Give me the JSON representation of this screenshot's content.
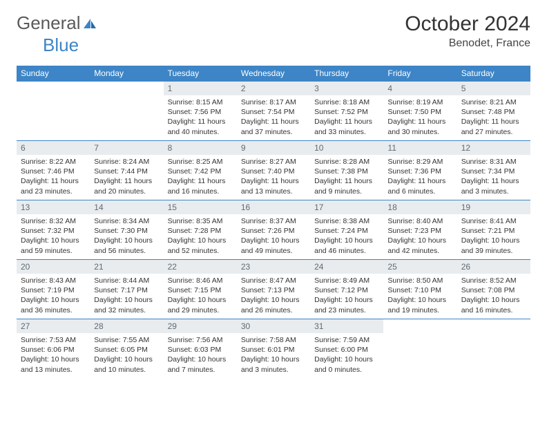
{
  "header": {
    "logo_part1": "General",
    "logo_part2": "Blue",
    "month_title": "October 2024",
    "location": "Benodet, France"
  },
  "colors": {
    "header_bg": "#3d85c6",
    "header_text": "#ffffff",
    "daynum_bg": "#e8ecef",
    "daynum_text": "#5f6a72",
    "border": "#3d85c6",
    "body_text": "#333333",
    "logo_gray": "#5a5a5a",
    "logo_blue": "#3d85c6"
  },
  "typography": {
    "month_title_fontsize": 30,
    "location_fontsize": 16,
    "dayheader_fontsize": 12,
    "daynum_fontsize": 12,
    "daytext_fontsize": 10.5,
    "logo_fontsize": 26
  },
  "calendar": {
    "type": "table",
    "columns": [
      "Sunday",
      "Monday",
      "Tuesday",
      "Wednesday",
      "Thursday",
      "Friday",
      "Saturday"
    ],
    "weeks": [
      [
        null,
        null,
        {
          "n": "1",
          "sunrise": "8:15 AM",
          "sunset": "7:56 PM",
          "daylight": "11 hours and 40 minutes."
        },
        {
          "n": "2",
          "sunrise": "8:17 AM",
          "sunset": "7:54 PM",
          "daylight": "11 hours and 37 minutes."
        },
        {
          "n": "3",
          "sunrise": "8:18 AM",
          "sunset": "7:52 PM",
          "daylight": "11 hours and 33 minutes."
        },
        {
          "n": "4",
          "sunrise": "8:19 AM",
          "sunset": "7:50 PM",
          "daylight": "11 hours and 30 minutes."
        },
        {
          "n": "5",
          "sunrise": "8:21 AM",
          "sunset": "7:48 PM",
          "daylight": "11 hours and 27 minutes."
        }
      ],
      [
        {
          "n": "6",
          "sunrise": "8:22 AM",
          "sunset": "7:46 PM",
          "daylight": "11 hours and 23 minutes."
        },
        {
          "n": "7",
          "sunrise": "8:24 AM",
          "sunset": "7:44 PM",
          "daylight": "11 hours and 20 minutes."
        },
        {
          "n": "8",
          "sunrise": "8:25 AM",
          "sunset": "7:42 PM",
          "daylight": "11 hours and 16 minutes."
        },
        {
          "n": "9",
          "sunrise": "8:27 AM",
          "sunset": "7:40 PM",
          "daylight": "11 hours and 13 minutes."
        },
        {
          "n": "10",
          "sunrise": "8:28 AM",
          "sunset": "7:38 PM",
          "daylight": "11 hours and 9 minutes."
        },
        {
          "n": "11",
          "sunrise": "8:29 AM",
          "sunset": "7:36 PM",
          "daylight": "11 hours and 6 minutes."
        },
        {
          "n": "12",
          "sunrise": "8:31 AM",
          "sunset": "7:34 PM",
          "daylight": "11 hours and 3 minutes."
        }
      ],
      [
        {
          "n": "13",
          "sunrise": "8:32 AM",
          "sunset": "7:32 PM",
          "daylight": "10 hours and 59 minutes."
        },
        {
          "n": "14",
          "sunrise": "8:34 AM",
          "sunset": "7:30 PM",
          "daylight": "10 hours and 56 minutes."
        },
        {
          "n": "15",
          "sunrise": "8:35 AM",
          "sunset": "7:28 PM",
          "daylight": "10 hours and 52 minutes."
        },
        {
          "n": "16",
          "sunrise": "8:37 AM",
          "sunset": "7:26 PM",
          "daylight": "10 hours and 49 minutes."
        },
        {
          "n": "17",
          "sunrise": "8:38 AM",
          "sunset": "7:24 PM",
          "daylight": "10 hours and 46 minutes."
        },
        {
          "n": "18",
          "sunrise": "8:40 AM",
          "sunset": "7:23 PM",
          "daylight": "10 hours and 42 minutes."
        },
        {
          "n": "19",
          "sunrise": "8:41 AM",
          "sunset": "7:21 PM",
          "daylight": "10 hours and 39 minutes."
        }
      ],
      [
        {
          "n": "20",
          "sunrise": "8:43 AM",
          "sunset": "7:19 PM",
          "daylight": "10 hours and 36 minutes."
        },
        {
          "n": "21",
          "sunrise": "8:44 AM",
          "sunset": "7:17 PM",
          "daylight": "10 hours and 32 minutes."
        },
        {
          "n": "22",
          "sunrise": "8:46 AM",
          "sunset": "7:15 PM",
          "daylight": "10 hours and 29 minutes."
        },
        {
          "n": "23",
          "sunrise": "8:47 AM",
          "sunset": "7:13 PM",
          "daylight": "10 hours and 26 minutes."
        },
        {
          "n": "24",
          "sunrise": "8:49 AM",
          "sunset": "7:12 PM",
          "daylight": "10 hours and 23 minutes."
        },
        {
          "n": "25",
          "sunrise": "8:50 AM",
          "sunset": "7:10 PM",
          "daylight": "10 hours and 19 minutes."
        },
        {
          "n": "26",
          "sunrise": "8:52 AM",
          "sunset": "7:08 PM",
          "daylight": "10 hours and 16 minutes."
        }
      ],
      [
        {
          "n": "27",
          "sunrise": "7:53 AM",
          "sunset": "6:06 PM",
          "daylight": "10 hours and 13 minutes."
        },
        {
          "n": "28",
          "sunrise": "7:55 AM",
          "sunset": "6:05 PM",
          "daylight": "10 hours and 10 minutes."
        },
        {
          "n": "29",
          "sunrise": "7:56 AM",
          "sunset": "6:03 PM",
          "daylight": "10 hours and 7 minutes."
        },
        {
          "n": "30",
          "sunrise": "7:58 AM",
          "sunset": "6:01 PM",
          "daylight": "10 hours and 3 minutes."
        },
        {
          "n": "31",
          "sunrise": "7:59 AM",
          "sunset": "6:00 PM",
          "daylight": "10 hours and 0 minutes."
        },
        null,
        null
      ]
    ],
    "labels": {
      "sunrise_prefix": "Sunrise: ",
      "sunset_prefix": "Sunset: ",
      "daylight_prefix": "Daylight: "
    }
  }
}
